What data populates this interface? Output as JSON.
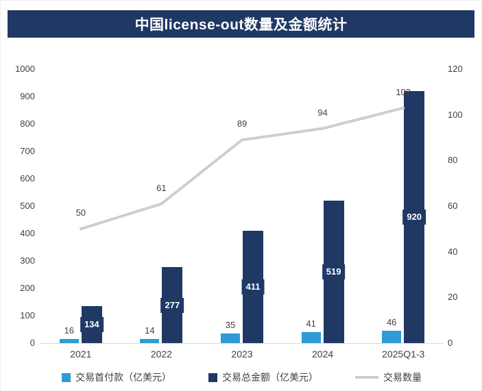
{
  "title": "中国license-out数量及金额统计",
  "colors": {
    "banner_bg": "#1F3864",
    "banner_text": "#FFFFFF",
    "first_payment_bar": "#2E9BD6",
    "total_amount_bar": "#1F3864",
    "count_line": "#CFCECE",
    "axis_text": "#404040"
  },
  "chart_data": {
    "type": "bar",
    "subtype": "combo-bar-line",
    "title": "中国license-out数量及金额统计",
    "categories": [
      "2021",
      "2022",
      "2023",
      "2024",
      "2025Q1-3"
    ],
    "series": [
      {
        "name": "交易首付款（亿美元）",
        "type": "bar",
        "axis": "left",
        "color": "#2E9BD6",
        "values": [
          16,
          14,
          35,
          41,
          46
        ]
      },
      {
        "name": "交易总金额（亿美元）",
        "type": "bar",
        "axis": "left",
        "color": "#1F3864",
        "values": [
          134,
          277,
          411,
          519,
          920
        ]
      },
      {
        "name": "交易数量",
        "type": "line",
        "axis": "right",
        "color": "#CFCECE",
        "values": [
          50,
          61,
          89,
          94,
          103
        ]
      }
    ],
    "left_axis": {
      "min": 0,
      "max": 1000,
      "step": 100,
      "ticks": [
        0,
        100,
        200,
        300,
        400,
        500,
        600,
        700,
        800,
        900,
        1000
      ]
    },
    "right_axis": {
      "min": 0,
      "max": 120,
      "step": 20,
      "ticks": [
        0,
        20,
        40,
        60,
        80,
        100,
        120
      ]
    },
    "grid": false,
    "data_labels": true,
    "legend_position": "bottom"
  }
}
